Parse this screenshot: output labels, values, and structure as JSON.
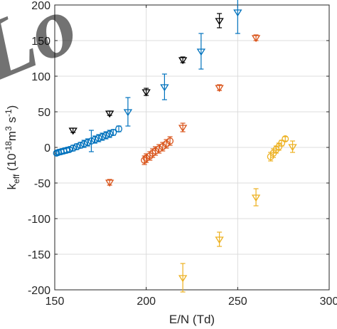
{
  "watermark": "Lo",
  "chart_data": {
    "type": "scatter",
    "title": "",
    "xlabel": "E/N (Td)",
    "ylabel_main": "k",
    "ylabel_sub": "eff",
    "ylabel_unit_open": " (10",
    "ylabel_unit_exp1": "-18",
    "ylabel_unit_mid": "m",
    "ylabel_unit_exp2": "3",
    "ylabel_unit_s": " s",
    "ylabel_unit_exp3": "-1",
    "ylabel_unit_close": ")",
    "xlim": [
      150,
      300
    ],
    "ylim": [
      -200,
      200
    ],
    "xticks": [
      "150",
      "200",
      "250",
      "300"
    ],
    "yticks": [
      "-200",
      "-150",
      "-100",
      "-50",
      "0",
      "50",
      "100",
      "150",
      "200"
    ],
    "grid": true,
    "series": [
      {
        "color": "#0072bd",
        "marker": "circle",
        "points": [
          {
            "x": 151,
            "y": -8,
            "err": 3
          },
          {
            "x": 152,
            "y": -7,
            "err": 3
          },
          {
            "x": 153.5,
            "y": -6,
            "err": 3
          },
          {
            "x": 155,
            "y": -5,
            "err": 3
          },
          {
            "x": 156.5,
            "y": -4,
            "err": 3
          },
          {
            "x": 158,
            "y": -3,
            "err": 3
          },
          {
            "x": 160,
            "y": -1,
            "err": 4
          },
          {
            "x": 162,
            "y": 1,
            "err": 4
          },
          {
            "x": 164,
            "y": 3,
            "err": 4
          },
          {
            "x": 166,
            "y": 5,
            "err": 5
          },
          {
            "x": 168,
            "y": 7,
            "err": 5
          },
          {
            "x": 170,
            "y": 9,
            "err": 15
          },
          {
            "x": 172,
            "y": 11,
            "err": 5
          },
          {
            "x": 174,
            "y": 13,
            "err": 5
          },
          {
            "x": 176,
            "y": 15,
            "err": 5
          },
          {
            "x": 178,
            "y": 17,
            "err": 5
          },
          {
            "x": 180,
            "y": 19,
            "err": 5
          },
          {
            "x": 182,
            "y": 21,
            "err": 4
          },
          {
            "x": 185,
            "y": 26,
            "err": 4
          }
        ]
      },
      {
        "color": "#0072bd",
        "marker": "triangle-down",
        "points": [
          {
            "x": 190,
            "y": 50,
            "err": 20
          },
          {
            "x": 210,
            "y": 85,
            "err": 18
          },
          {
            "x": 230,
            "y": 135,
            "err": 25
          },
          {
            "x": 250,
            "y": 190,
            "err": 30
          }
        ]
      },
      {
        "color": "#000000",
        "marker": "triangle-down",
        "points": [
          {
            "x": 160,
            "y": 24,
            "err": 3
          },
          {
            "x": 180,
            "y": 48,
            "err": 3
          },
          {
            "x": 200,
            "y": 78,
            "err": 5
          },
          {
            "x": 220,
            "y": 123,
            "err": 4
          },
          {
            "x": 240,
            "y": 178,
            "err": 10
          }
        ]
      },
      {
        "color": "#d95319",
        "marker": "circle",
        "points": [
          {
            "x": 199,
            "y": -18,
            "err": 6
          },
          {
            "x": 200,
            "y": -15,
            "err": 6
          },
          {
            "x": 202,
            "y": -12,
            "err": 6
          },
          {
            "x": 203.5,
            "y": -8,
            "err": 6
          },
          {
            "x": 205,
            "y": -5,
            "err": 6
          },
          {
            "x": 207,
            "y": -2,
            "err": 6
          },
          {
            "x": 209,
            "y": 1,
            "err": 6
          },
          {
            "x": 211,
            "y": 5,
            "err": 6
          },
          {
            "x": 213,
            "y": 9,
            "err": 6
          }
        ]
      },
      {
        "color": "#d95319",
        "marker": "triangle-down",
        "points": [
          {
            "x": 180,
            "y": -49,
            "err": 4
          },
          {
            "x": 220,
            "y": 28,
            "err": 6
          },
          {
            "x": 240,
            "y": 84,
            "err": 4
          },
          {
            "x": 260,
            "y": 154,
            "err": 4
          }
        ]
      },
      {
        "color": "#edb120",
        "marker": "circle",
        "points": [
          {
            "x": 268,
            "y": -13,
            "err": 6
          },
          {
            "x": 269.5,
            "y": -8,
            "err": 6
          },
          {
            "x": 271,
            "y": -3,
            "err": 5
          },
          {
            "x": 272.5,
            "y": 1,
            "err": 5
          },
          {
            "x": 274,
            "y": 6,
            "err": 4
          },
          {
            "x": 276,
            "y": 12,
            "err": 3
          }
        ]
      },
      {
        "color": "#edb120",
        "marker": "triangle-down",
        "points": [
          {
            "x": 220,
            "y": -183,
            "err": 20
          },
          {
            "x": 240,
            "y": -129,
            "err": 10
          },
          {
            "x": 260,
            "y": -70,
            "err": 12
          },
          {
            "x": 280,
            "y": 1,
            "err": 8
          }
        ]
      }
    ]
  }
}
